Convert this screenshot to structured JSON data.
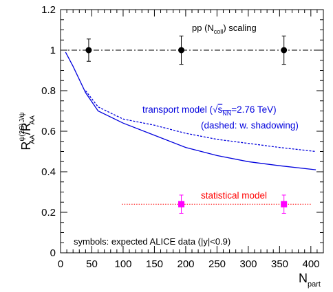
{
  "chart_data": {
    "type": "line",
    "xlim": [
      0,
      420
    ],
    "ylim": [
      0,
      1.2
    ],
    "xticks": [
      0,
      50,
      100,
      150,
      200,
      250,
      300,
      350,
      400
    ],
    "yticks": [
      0,
      0.2,
      0.4,
      0.6,
      0.8,
      1,
      1.2
    ],
    "ytick_labels": [
      "0",
      "0.2",
      "0.4",
      "0.6",
      "0.8",
      "1",
      "1.2"
    ],
    "grid": false,
    "labels": {
      "x_main": "N",
      "x_sub": "part",
      "y_num": "R",
      "y_num_sup": "ψ(2S)",
      "y_num_sub": "AA",
      "y_slash": "/",
      "y_den": "R",
      "y_den_sup": "J/ψ",
      "y_den_sub": "AA",
      "pp_pre": "pp (N",
      "pp_sub": "coll",
      "pp_post": ") scaling",
      "transport_pre": "transport model (",
      "transport_root": "√",
      "transport_s": "s",
      "transport_s_sub": "NN",
      "transport_post": "=2.76 TeV)",
      "dashed_note": "(dashed: w. shadowing)",
      "statistical": "statistical model",
      "symbols_note": "symbols: expected ALICE data (|y|<0.9)"
    },
    "colors": {
      "transport": "#0000dd",
      "statistical": "#ff0000",
      "stat_points": "#ff00ff",
      "pp": "#000000"
    },
    "pp_scaling": {
      "line_y": 1.0,
      "x_range": [
        0,
        420
      ],
      "points": [
        {
          "x": 45,
          "y": 1.0,
          "yerr": 0.055
        },
        {
          "x": 193,
          "y": 1.0,
          "yerr": 0.07
        },
        {
          "x": 357,
          "y": 1.0,
          "yerr": 0.07
        }
      ]
    },
    "transport_solid": {
      "x": [
        8,
        20,
        40,
        60,
        100,
        150,
        200,
        250,
        300,
        350,
        408
      ],
      "y": [
        0.99,
        0.92,
        0.79,
        0.7,
        0.64,
        0.58,
        0.52,
        0.48,
        0.45,
        0.43,
        0.41
      ]
    },
    "transport_dashed": {
      "x": [
        40,
        60,
        100,
        150,
        200,
        250,
        300,
        350,
        408
      ],
      "y": [
        0.8,
        0.72,
        0.66,
        0.63,
        0.59,
        0.56,
        0.54,
        0.52,
        0.5
      ]
    },
    "statistical_model": {
      "line_y": 0.24,
      "x_range": [
        98,
        400
      ],
      "points": [
        {
          "x": 193,
          "y": 0.24,
          "yerr": 0.045
        },
        {
          "x": 357,
          "y": 0.24,
          "yerr": 0.045
        }
      ]
    }
  }
}
